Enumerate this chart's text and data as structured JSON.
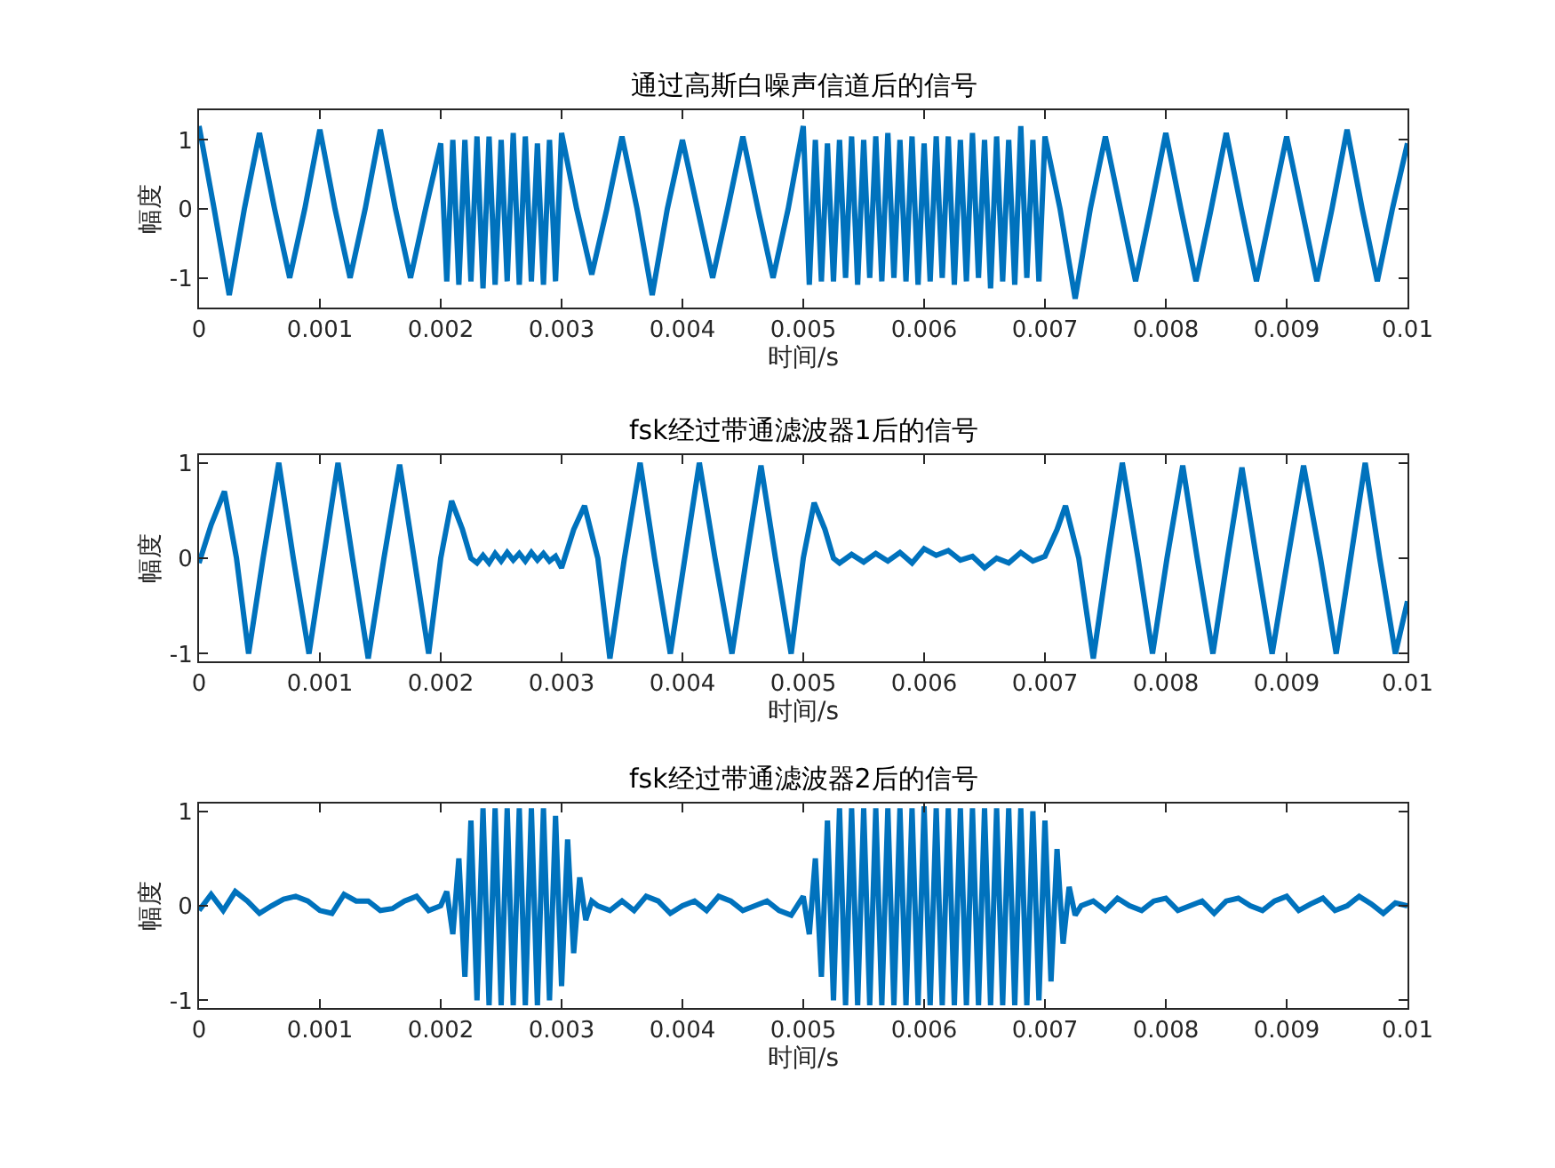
{
  "chart_data": [
    {
      "type": "line",
      "title": "通过高斯白噪声信道后的信号",
      "xlabel": "时间/s",
      "ylabel": "幅度",
      "xlim": [
        0,
        0.01
      ],
      "xticks": [
        0,
        0.001,
        0.002,
        0.003,
        0.004,
        0.005,
        0.006,
        0.007,
        0.008,
        0.009,
        0.01
      ],
      "ylim": [
        -1.43,
        1.43
      ],
      "yticks": [
        -1,
        0,
        1
      ],
      "series": [
        {
          "color": "#0072bd",
          "x": [
            0,
            0.000125,
            0.00025,
            0.000375,
            0.0005,
            0.000625,
            0.00075,
            0.000875,
            0.001,
            0.001125,
            0.00125,
            0.001375,
            0.0015,
            0.001625,
            0.00175,
            0.001875,
            0.002,
            0.00205,
            0.0021,
            0.00215,
            0.0022,
            0.00225,
            0.0023,
            0.00235,
            0.0024,
            0.00245,
            0.0025,
            0.00255,
            0.0026,
            0.00265,
            0.0027,
            0.00275,
            0.0028,
            0.00285,
            0.0029,
            0.00295,
            0.003,
            0.003125,
            0.00325,
            0.003375,
            0.0035,
            0.003625,
            0.00375,
            0.003875,
            0.004,
            0.004125,
            0.00425,
            0.004375,
            0.0045,
            0.004625,
            0.00475,
            0.004875,
            0.005,
            0.00505,
            0.0051,
            0.00515,
            0.0052,
            0.00525,
            0.0053,
            0.00535,
            0.0054,
            0.00545,
            0.0055,
            0.00555,
            0.0056,
            0.00565,
            0.0057,
            0.00575,
            0.0058,
            0.00585,
            0.0059,
            0.00595,
            0.006,
            0.00605,
            0.0061,
            0.00615,
            0.0062,
            0.00625,
            0.0063,
            0.00635,
            0.0064,
            0.00645,
            0.0065,
            0.00655,
            0.0066,
            0.00665,
            0.0067,
            0.00675,
            0.0068,
            0.00685,
            0.0069,
            0.00695,
            0.007,
            0.007125,
            0.00725,
            0.007375,
            0.0075,
            0.007625,
            0.00775,
            0.007875,
            0.008,
            0.008125,
            0.00825,
            0.008375,
            0.0085,
            0.008625,
            0.00875,
            0.008875,
            0.009,
            0.009125,
            0.00925,
            0.009375,
            0.0095,
            0.009625,
            0.00975,
            0.009875,
            0.01
          ],
          "values": [
            1.2,
            0,
            -1.25,
            0,
            1.1,
            0,
            -1.0,
            0,
            1.15,
            0,
            -1.0,
            0,
            1.15,
            0,
            -1.0,
            0,
            0.95,
            -1.05,
            1.0,
            -1.1,
            1.0,
            -1.05,
            1.05,
            -1.15,
            1.05,
            -1.1,
            1.0,
            -1.05,
            1.1,
            -1.1,
            1.05,
            -1.05,
            0.95,
            -1.1,
            1.0,
            -1.05,
            1.1,
            0,
            -0.95,
            0,
            1.05,
            0,
            -1.25,
            0,
            1.0,
            0,
            -1.0,
            0,
            1.05,
            0,
            -1.0,
            0,
            1.2,
            -1.1,
            1.0,
            -1.05,
            0.95,
            -1.05,
            1.0,
            -1.0,
            1.05,
            -1.1,
            1.0,
            -1.0,
            1.05,
            -1.05,
            1.1,
            -1.0,
            1.0,
            -1.05,
            1.05,
            -1.1,
            0.95,
            -1.05,
            1.05,
            -1.0,
            1.05,
            -1.1,
            1.0,
            -1.05,
            1.1,
            -1.0,
            1.0,
            -1.15,
            1.05,
            -1.05,
            1.0,
            -1.1,
            1.2,
            -1.0,
            1.0,
            -1.05,
            1.05,
            0,
            -1.3,
            0,
            1.05,
            0,
            -1.05,
            0,
            1.1,
            0,
            -1.05,
            0,
            1.1,
            0,
            -1.05,
            0,
            1.05,
            0,
            -1.05,
            0,
            1.15,
            0,
            -1.05,
            0,
            0.95
          ]
        }
      ]
    },
    {
      "type": "line",
      "title": "fsk经过带通滤波器1后的信号",
      "xlabel": "时间/s",
      "ylabel": "幅度",
      "xlim": [
        0,
        0.01
      ],
      "xticks": [
        0,
        0.001,
        0.002,
        0.003,
        0.004,
        0.005,
        0.006,
        0.007,
        0.008,
        0.009,
        0.01
      ],
      "ylim": [
        -1.08,
        1.08
      ],
      "yticks": [
        -1,
        0,
        1
      ],
      "series": [
        {
          "color": "#0072bd",
          "x": [
            0,
            0.0001,
            0.00021,
            0.00031,
            0.00041,
            0.00053,
            0.00066,
            0.00078,
            0.00091,
            0.00103,
            0.00115,
            0.00127,
            0.0014,
            0.00153,
            0.00166,
            0.00178,
            0.0019,
            0.002,
            0.00209,
            0.00218,
            0.00225,
            0.0023,
            0.00235,
            0.0024,
            0.00245,
            0.0025,
            0.00255,
            0.0026,
            0.00265,
            0.0027,
            0.00275,
            0.0028,
            0.00285,
            0.0029,
            0.00295,
            0.003,
            0.0031,
            0.00319,
            0.0033,
            0.0034,
            0.00352,
            0.00365,
            0.00377,
            0.0039,
            0.00402,
            0.00414,
            0.00427,
            0.00441,
            0.00453,
            0.00465,
            0.00477,
            0.0049,
            0.005,
            0.00509,
            0.00518,
            0.00525,
            0.0053,
            0.0054,
            0.0055,
            0.0056,
            0.0057,
            0.0058,
            0.0059,
            0.006,
            0.0061,
            0.0062,
            0.0063,
            0.0064,
            0.0065,
            0.0066,
            0.0067,
            0.0068,
            0.0069,
            0.007,
            0.0071,
            0.00717,
            0.00728,
            0.0074,
            0.00752,
            0.00764,
            0.00777,
            0.00789,
            0.00801,
            0.00814,
            0.00826,
            0.00839,
            0.00851,
            0.00863,
            0.00875,
            0.00888,
            0.00901,
            0.00914,
            0.00928,
            0.00941,
            0.00953,
            0.00965,
            0.00977,
            0.0099,
            0.01
          ],
          "values": [
            -0.05,
            0.35,
            0.7,
            0,
            -1.0,
            0,
            1.0,
            0,
            -1.0,
            0,
            1.0,
            0,
            -1.05,
            0,
            0.98,
            0,
            -1.0,
            0,
            0.6,
            0.3,
            0.0,
            -0.05,
            0.03,
            -0.05,
            0.05,
            -0.03,
            0.06,
            -0.02,
            0.05,
            -0.03,
            0.06,
            -0.02,
            0.05,
            -0.03,
            0.02,
            -0.1,
            0.3,
            0.55,
            0,
            -1.05,
            0,
            1.0,
            0,
            -1.0,
            0,
            1.0,
            0,
            -1.0,
            0,
            0.97,
            0,
            -1.0,
            0,
            0.58,
            0.3,
            0.0,
            -0.05,
            0.04,
            -0.04,
            0.05,
            -0.03,
            0.06,
            -0.05,
            0.1,
            0.03,
            0.08,
            -0.02,
            0.02,
            -0.1,
            0.0,
            -0.05,
            0.06,
            -0.03,
            0.02,
            0.3,
            0.55,
            0,
            -1.05,
            0,
            1.0,
            0,
            -1.0,
            0,
            0.97,
            0,
            -1.0,
            0,
            0.95,
            0,
            -1.0,
            0,
            0.97,
            0,
            -1.0,
            0,
            1.0,
            0,
            -1.0,
            -0.45
          ]
        }
      ]
    },
    {
      "type": "line",
      "title": "fsk经过带通滤波器2后的信号",
      "xlabel": "时间/s",
      "ylabel": "幅度",
      "xlim": [
        0,
        0.01
      ],
      "xticks": [
        0,
        0.001,
        0.002,
        0.003,
        0.004,
        0.005,
        0.006,
        0.007,
        0.008,
        0.009,
        0.01
      ],
      "ylim": [
        -1.08,
        1.08
      ],
      "yticks": [
        -1,
        0,
        1
      ],
      "series": [
        {
          "color": "#0072bd",
          "x": [
            0,
            0.0001,
            0.0002,
            0.0003,
            0.0004,
            0.0005,
            0.0006,
            0.0007,
            0.0008,
            0.0009,
            0.001,
            0.0011,
            0.0012,
            0.0013,
            0.0014,
            0.0015,
            0.0016,
            0.0017,
            0.0018,
            0.0019,
            0.002,
            0.00205,
            0.0021,
            0.00215,
            0.0022,
            0.00225,
            0.0023,
            0.00235,
            0.0024,
            0.00245,
            0.0025,
            0.00255,
            0.0026,
            0.00265,
            0.0027,
            0.00275,
            0.0028,
            0.00285,
            0.0029,
            0.00295,
            0.003,
            0.00305,
            0.0031,
            0.00315,
            0.0032,
            0.00325,
            0.0033,
            0.0034,
            0.0035,
            0.0036,
            0.0037,
            0.0038,
            0.0039,
            0.004,
            0.0041,
            0.0042,
            0.0043,
            0.0044,
            0.0045,
            0.0046,
            0.0047,
            0.0048,
            0.0049,
            0.005,
            0.00505,
            0.0051,
            0.00515,
            0.0052,
            0.00525,
            0.0053,
            0.00535,
            0.0054,
            0.00545,
            0.0055,
            0.00555,
            0.0056,
            0.00565,
            0.0057,
            0.00575,
            0.0058,
            0.00585,
            0.0059,
            0.00595,
            0.006,
            0.00605,
            0.0061,
            0.00615,
            0.0062,
            0.00625,
            0.0063,
            0.00635,
            0.0064,
            0.00645,
            0.0065,
            0.00655,
            0.0066,
            0.00665,
            0.0067,
            0.00675,
            0.0068,
            0.00685,
            0.0069,
            0.00695,
            0.007,
            0.00705,
            0.0071,
            0.00715,
            0.0072,
            0.00725,
            0.0073,
            0.0074,
            0.0075,
            0.0076,
            0.0077,
            0.0078,
            0.0079,
            0.008,
            0.0081,
            0.0082,
            0.0083,
            0.0084,
            0.0085,
            0.0086,
            0.0087,
            0.0088,
            0.0089,
            0.009,
            0.0091,
            0.0092,
            0.0093,
            0.0094,
            0.0095,
            0.0096,
            0.0097,
            0.0098,
            0.0099,
            0.01
          ],
          "values": [
            -0.05,
            0.12,
            -0.05,
            0.15,
            0.05,
            -0.08,
            0.0,
            0.07,
            0.1,
            0.05,
            -0.05,
            -0.08,
            0.12,
            0.05,
            0.05,
            -0.05,
            -0.03,
            0.05,
            0.1,
            -0.05,
            0.0,
            0.15,
            -0.3,
            0.5,
            -0.75,
            0.9,
            -1.0,
            1.03,
            -1.05,
            1.03,
            -1.05,
            1.03,
            -1.05,
            1.03,
            -1.05,
            1.03,
            -1.05,
            1.03,
            -1.0,
            0.95,
            -0.85,
            0.7,
            -0.5,
            0.3,
            -0.15,
            0.05,
            0.0,
            -0.05,
            0.05,
            -0.05,
            0.1,
            0.05,
            -0.08,
            0.0,
            0.05,
            -0.05,
            0.1,
            0.05,
            -0.05,
            0.0,
            0.05,
            -0.05,
            -0.1,
            0.1,
            -0.3,
            0.5,
            -0.75,
            0.9,
            -1.0,
            1.03,
            -1.05,
            1.03,
            -1.05,
            1.03,
            -1.05,
            1.03,
            -1.05,
            1.03,
            -1.05,
            1.03,
            -1.05,
            1.03,
            -1.05,
            1.05,
            -1.05,
            1.03,
            -1.05,
            1.03,
            -1.05,
            1.03,
            -1.05,
            1.03,
            -1.05,
            1.03,
            -1.05,
            1.03,
            -1.05,
            1.03,
            -1.05,
            1.03,
            -1.05,
            1.0,
            -1.0,
            0.9,
            -0.8,
            0.6,
            -0.4,
            0.2,
            -0.1,
            0.0,
            0.05,
            -0.05,
            0.08,
            0.0,
            -0.05,
            0.05,
            0.08,
            -0.05,
            0.0,
            0.05,
            -0.08,
            0.05,
            0.08,
            0.0,
            -0.05,
            0.05,
            0.1,
            -0.05,
            0.02,
            0.08,
            -0.05,
            0.0,
            0.1,
            0.02,
            -0.08,
            0.03,
            0.0
          ]
        }
      ]
    }
  ]
}
